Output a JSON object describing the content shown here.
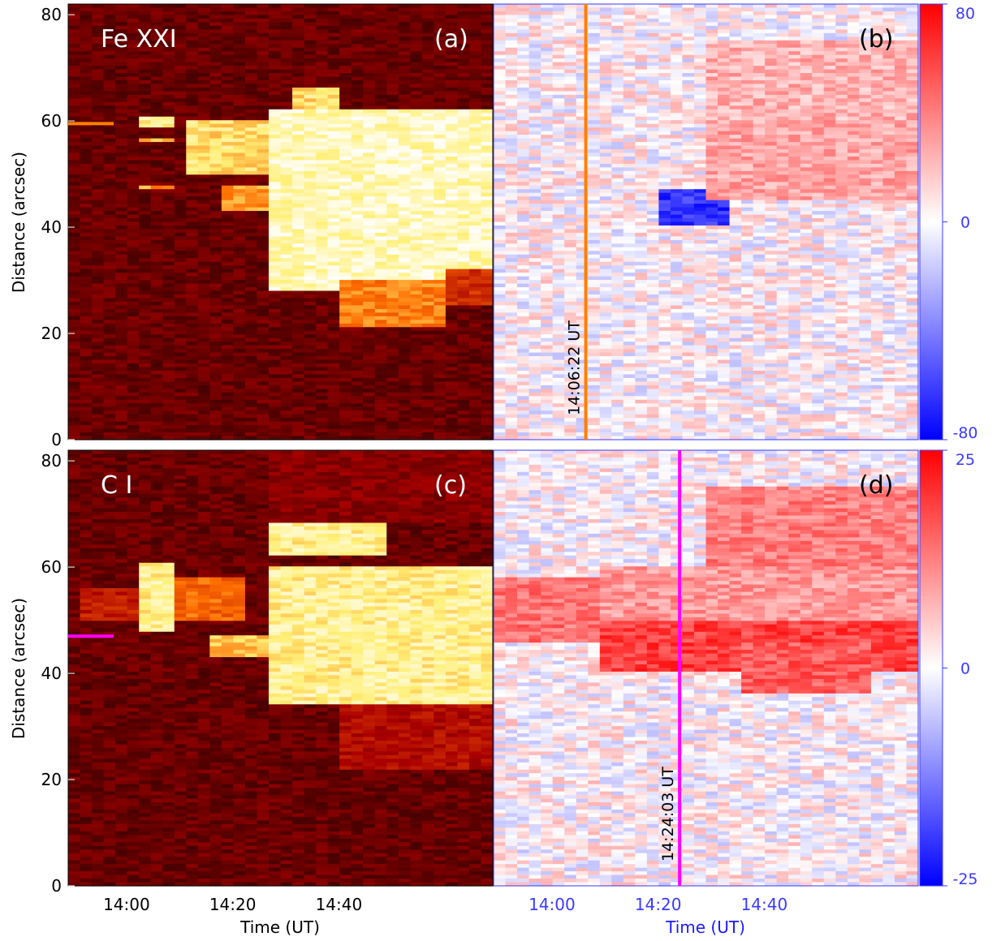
{
  "chart_data": [
    {
      "panel": "a",
      "type": "heatmap",
      "title": "Fe XXI",
      "tag": "(a)",
      "xlabel": "",
      "ylabel": "Distance (arcsec)",
      "yticks": [
        0,
        20,
        40,
        60,
        80
      ],
      "ylim": [
        0,
        82
      ],
      "xlim_minutes": [
        -11,
        69
      ],
      "colormap": "red-temperature",
      "marker": {
        "y": 59.5,
        "color": "#ff7f00"
      },
      "blobs": [
        {
          "t0": 3,
          "t1": 10,
          "y0": 59,
          "y1": 61,
          "v": 0.95
        },
        {
          "t0": 3,
          "t1": 10,
          "y0": 56,
          "y1": 57,
          "v": 0.85
        },
        {
          "t0": 3,
          "t1": 10,
          "y0": 47,
          "y1": 48,
          "v": 0.8
        },
        {
          "t0": 12,
          "t1": 26,
          "y0": 50,
          "y1": 60,
          "v": 0.9
        },
        {
          "t0": 19,
          "t1": 27,
          "y0": 43,
          "y1": 48,
          "v": 0.8
        },
        {
          "t0": 27,
          "t1": 69,
          "y0": 28,
          "y1": 62,
          "v": 1.0
        },
        {
          "t0": 31,
          "t1": 40,
          "y0": 62,
          "y1": 66,
          "v": 0.9
        },
        {
          "t0": 40,
          "t1": 60,
          "y0": 21,
          "y1": 30,
          "v": 0.75
        },
        {
          "t0": 60,
          "t1": 69,
          "y0": 25,
          "y1": 32,
          "v": 0.55
        }
      ]
    },
    {
      "panel": "b",
      "type": "heatmap",
      "tag": "(b)",
      "xlabel": "",
      "ylim": [
        0,
        82
      ],
      "xlim_minutes": [
        -11,
        69
      ],
      "colormap": "blue-white-red",
      "colorbar": {
        "ticks": [
          80,
          0,
          -80
        ],
        "range": [
          -80,
          80
        ]
      },
      "vline": {
        "label": "14:06:22 UT",
        "t": 6.37,
        "color": "#ff7f00"
      },
      "blobs": [
        {
          "t0": 21,
          "t1": 33,
          "y0": 40,
          "y1": 47,
          "v": -0.8
        },
        {
          "t0": 30,
          "t1": 69,
          "y0": 45,
          "y1": 60,
          "v": 0.35
        },
        {
          "t0": 30,
          "t1": 69,
          "y0": 60,
          "y1": 75,
          "v": 0.3
        }
      ]
    },
    {
      "panel": "c",
      "type": "heatmap",
      "title": "C I",
      "tag": "(c)",
      "xlabel": "Time (UT)",
      "ylabel": "Distance (arcsec)",
      "xticks": [
        "14:00",
        "14:20",
        "14:40"
      ],
      "xtick_minutes": [
        0,
        20,
        40
      ],
      "yticks": [
        0,
        20,
        40,
        60,
        80
      ],
      "ylim": [
        0,
        82
      ],
      "xlim_minutes": [
        -11,
        69
      ],
      "colormap": "red-temperature",
      "marker": {
        "y": 47,
        "color": "#ff00ff"
      },
      "blobs": [
        {
          "t0": 2,
          "t1": 9,
          "y0": 48,
          "y1": 61,
          "v": 0.95
        },
        {
          "t0": -8,
          "t1": 2,
          "y0": 50,
          "y1": 56,
          "v": 0.5
        },
        {
          "t0": 9,
          "t1": 22,
          "y0": 50,
          "y1": 58,
          "v": 0.7
        },
        {
          "t0": 15,
          "t1": 27,
          "y0": 43,
          "y1": 47,
          "v": 0.85
        },
        {
          "t0": 27,
          "t1": 69,
          "y0": 34,
          "y1": 60,
          "v": 0.95
        },
        {
          "t0": 27,
          "t1": 50,
          "y0": 62,
          "y1": 68,
          "v": 0.95
        },
        {
          "t0": 27,
          "t1": 69,
          "y0": 68,
          "y1": 82,
          "v": 0.35
        },
        {
          "t0": 40,
          "t1": 69,
          "y0": 22,
          "y1": 34,
          "v": 0.45
        }
      ]
    },
    {
      "panel": "d",
      "type": "heatmap",
      "tag": "(d)",
      "xlabel": "Time (UT)",
      "xticks": [
        "14:00",
        "14:20",
        "14:40"
      ],
      "xtick_minutes": [
        0,
        20,
        40
      ],
      "ylim": [
        0,
        82
      ],
      "xlim_minutes": [
        -11,
        69
      ],
      "colormap": "blue-white-red",
      "colorbar": {
        "ticks": [
          25,
          0,
          -25
        ],
        "range": [
          -25,
          25
        ]
      },
      "vline": {
        "label": "14:24:03 UT",
        "t": 24.05,
        "color": "#ff00ff"
      },
      "blobs": [
        {
          "t0": -11,
          "t1": 30,
          "y0": 46,
          "y1": 58,
          "v": 0.55
        },
        {
          "t0": 10,
          "t1": 69,
          "y0": 40,
          "y1": 50,
          "v": 0.75
        },
        {
          "t0": 35,
          "t1": 60,
          "y0": 36,
          "y1": 46,
          "v": 0.65
        },
        {
          "t0": 30,
          "t1": 69,
          "y0": 60,
          "y1": 75,
          "v": 0.5
        },
        {
          "t0": 10,
          "t1": 69,
          "y0": 50,
          "y1": 60,
          "v": 0.4
        }
      ]
    }
  ]
}
